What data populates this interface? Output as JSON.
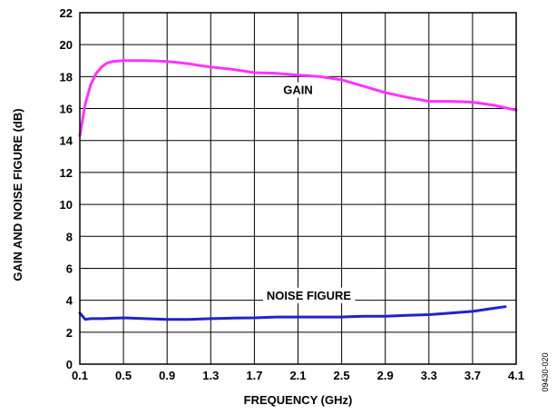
{
  "chart_data": {
    "type": "line",
    "xlabel": "FREQUENCY (GHz)",
    "ylabel": "GAIN AND NOISE FIGURE (dB)",
    "xlim": [
      0.1,
      4.1
    ],
    "ylim": [
      0,
      22
    ],
    "x_ticks": [
      0.1,
      0.5,
      0.9,
      1.3,
      1.7,
      2.1,
      2.5,
      2.9,
      3.3,
      3.7,
      4.1
    ],
    "x_tick_labels": [
      "0.1",
      "0.5",
      "0.9",
      "1.3",
      "1.7",
      "2.1",
      "2.5",
      "2.9",
      "3.3",
      "3.7",
      "4.1"
    ],
    "y_ticks": [
      0,
      2,
      4,
      6,
      8,
      10,
      12,
      14,
      16,
      18,
      20,
      22
    ],
    "y_tick_labels": [
      "0",
      "2",
      "4",
      "6",
      "8",
      "10",
      "12",
      "14",
      "16",
      "18",
      "20",
      "22"
    ],
    "grid": true,
    "series": [
      {
        "name": "GAIN",
        "color": "#ff33ff",
        "x": [
          0.1,
          0.15,
          0.2,
          0.25,
          0.3,
          0.35,
          0.4,
          0.5,
          0.6,
          0.7,
          0.8,
          0.9,
          1.0,
          1.1,
          1.2,
          1.3,
          1.5,
          1.7,
          1.9,
          2.1,
          2.3,
          2.5,
          2.7,
          2.9,
          3.1,
          3.3,
          3.5,
          3.7,
          3.9,
          4.1
        ],
        "y": [
          14.3,
          16.3,
          17.5,
          18.2,
          18.6,
          18.85,
          18.95,
          19.0,
          19.0,
          19.0,
          18.98,
          18.95,
          18.88,
          18.8,
          18.7,
          18.6,
          18.45,
          18.25,
          18.2,
          18.1,
          18.0,
          17.8,
          17.4,
          17.0,
          16.7,
          16.45,
          16.45,
          16.4,
          16.2,
          15.9
        ]
      },
      {
        "name": "NOISE FIGURE",
        "color": "#2222cc",
        "x": [
          0.1,
          0.15,
          0.2,
          0.3,
          0.5,
          0.7,
          0.9,
          1.1,
          1.3,
          1.5,
          1.7,
          1.9,
          2.1,
          2.3,
          2.5,
          2.7,
          2.9,
          3.1,
          3.3,
          3.5,
          3.7,
          3.9,
          4.0
        ],
        "y": [
          3.2,
          2.8,
          2.85,
          2.85,
          2.9,
          2.85,
          2.8,
          2.8,
          2.85,
          2.88,
          2.9,
          2.95,
          2.95,
          2.95,
          2.95,
          3.0,
          3.0,
          3.05,
          3.1,
          3.2,
          3.3,
          3.5,
          3.6
        ]
      }
    ],
    "annotations": [
      {
        "text": "GAIN",
        "x": 2.1,
        "y": 16.9
      },
      {
        "text": "NOISE FIGURE",
        "x": 2.2,
        "y": 4.05
      }
    ],
    "figure_id": "09430-020"
  }
}
